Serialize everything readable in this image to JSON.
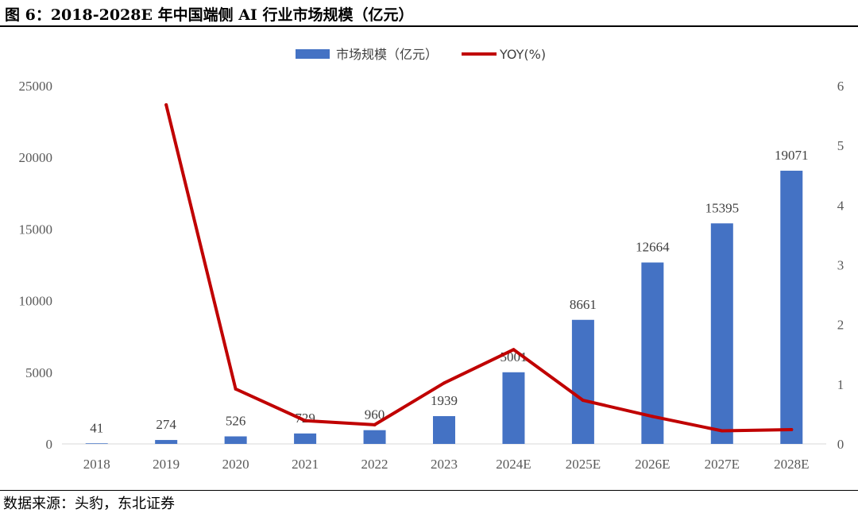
{
  "figure_title": "图 6：2018-2028E 年中国端侧 AI 行业市场规模（亿元）",
  "source_note": "数据来源：头豹，东北证券",
  "colors": {
    "bar": "#4472C4",
    "line": "#C00000",
    "axis": "#d9d9d9",
    "text": "#595959"
  },
  "chart_data": {
    "type": "bar+line",
    "title": "2018-2028E 年中国端侧 AI 行业市场规模（亿元）",
    "categories": [
      "2018",
      "2019",
      "2020",
      "2021",
      "2022",
      "2023",
      "2024E",
      "2025E",
      "2026E",
      "2027E",
      "2028E"
    ],
    "series": [
      {
        "name": "市场规模（亿元）",
        "type": "bar",
        "axis": "left",
        "values": [
          41,
          274,
          526,
          729,
          960,
          1939,
          5001,
          8661,
          12664,
          15395,
          19071
        ],
        "labels": [
          "41",
          "274",
          "526",
          "729",
          "960",
          "1939",
          "5001",
          "8661",
          "12664",
          "15395",
          "19071"
        ]
      },
      {
        "name": "YOY(%)",
        "type": "line",
        "axis": "right",
        "values": [
          null,
          5.68,
          0.92,
          0.39,
          0.32,
          1.02,
          1.58,
          0.73,
          0.46,
          0.22,
          0.24
        ]
      }
    ],
    "y_left": {
      "min": 0,
      "max": 25000,
      "ticks": [
        0,
        5000,
        10000,
        15000,
        20000,
        25000
      ]
    },
    "y_right": {
      "min": 0,
      "max": 6,
      "ticks": [
        0,
        1,
        2,
        3,
        4,
        5,
        6
      ]
    },
    "legend_position": "top-center",
    "grid": false
  }
}
